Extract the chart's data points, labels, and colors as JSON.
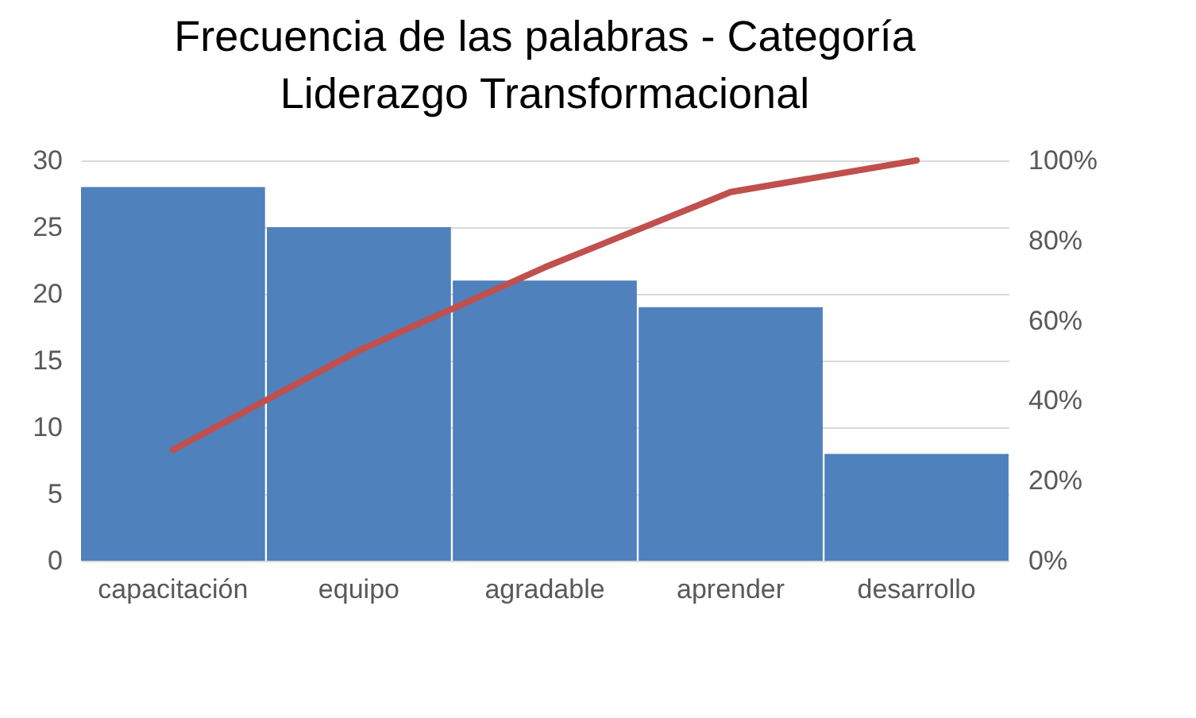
{
  "chart_data": {
    "type": "bar",
    "title": "Frecuencia de las palabras - Categoría Liderazgo Transformacional",
    "categories": [
      "capacitación",
      "equipo",
      "agradable",
      "aprender",
      "desarrollo"
    ],
    "series": [
      {
        "color": "#4f81bd",
        "values": [
          28,
          25,
          21,
          19,
          8
        ]
      },
      {
        "type": "line",
        "axis": "y2",
        "color": "#c0504d",
        "values": [
          27.7,
          52.5,
          73.3,
          92.1,
          100
        ]
      }
    ],
    "ylim": [
      0,
      30
    ],
    "yticks": [
      0,
      5,
      10,
      15,
      20,
      25,
      30
    ],
    "y2lim": [
      0,
      100
    ],
    "y2ticks": [
      {
        "value": 0,
        "label": "0%"
      },
      {
        "value": 20,
        "label": "20%"
      },
      {
        "value": 40,
        "label": "40%"
      },
      {
        "value": 60,
        "label": "60%"
      },
      {
        "value": 80,
        "label": "80%"
      },
      {
        "value": 100,
        "label": "100%"
      }
    ],
    "grid": "y",
    "legend": false,
    "marker": "none",
    "line_style": "solid"
  }
}
